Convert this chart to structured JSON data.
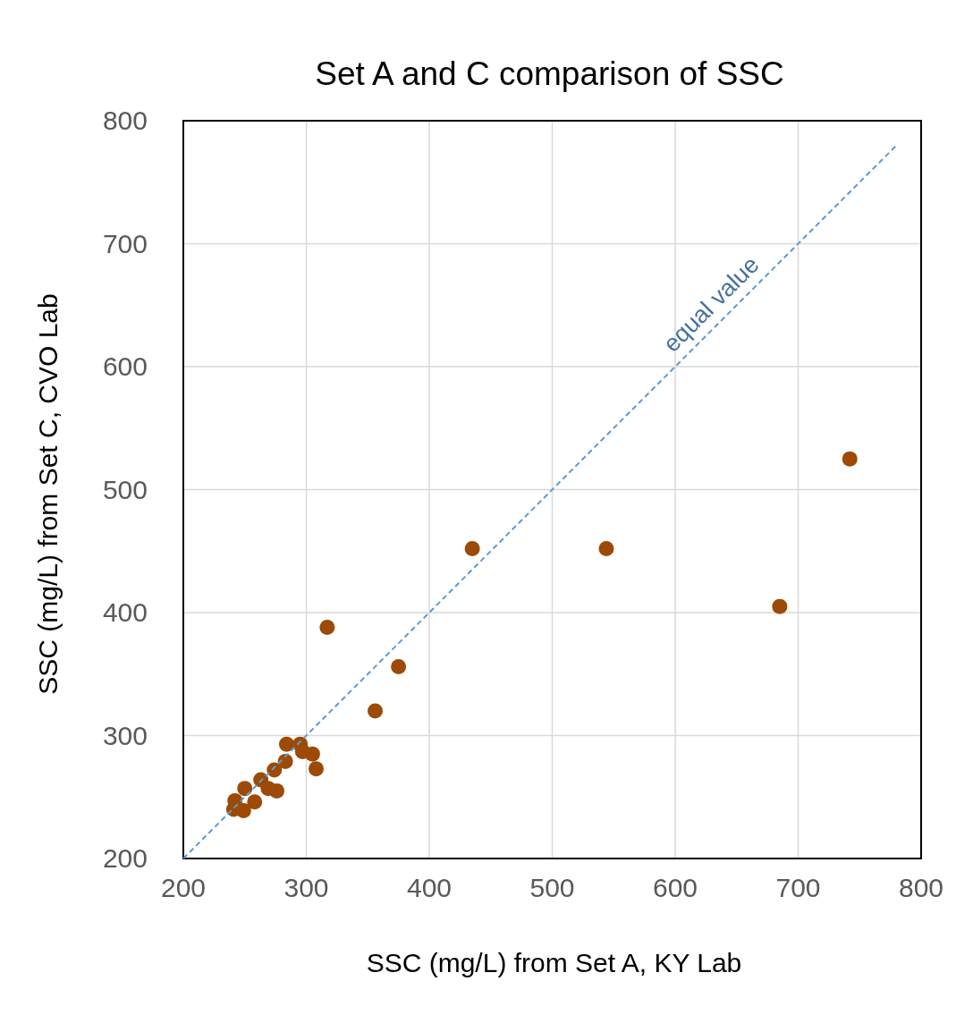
{
  "chart_data": {
    "type": "scatter",
    "title": "Set A and C comparison of SSC",
    "xlabel": "SSC (mg/L) from Set A, KY Lab",
    "ylabel": "SSC (mg/L) from Set C, CVO Lab",
    "xlim": [
      200,
      800
    ],
    "ylim": [
      200,
      800
    ],
    "xticks": [
      200,
      300,
      400,
      500,
      600,
      700,
      800
    ],
    "yticks": [
      200,
      300,
      400,
      500,
      600,
      700,
      800
    ],
    "grid": true,
    "marker": "circle",
    "series": [
      {
        "color": "#9c4a06",
        "x": [
          284,
          295,
          305,
          297,
          308,
          283,
          274,
          263,
          276,
          269,
          250,
          258,
          242,
          241,
          249,
          317,
          375,
          356,
          435,
          544,
          685,
          742
        ],
        "values": [
          293,
          293,
          285,
          287,
          273,
          279,
          272,
          264,
          255,
          257,
          257,
          246,
          247,
          240,
          239,
          388,
          356,
          320,
          452,
          452,
          405,
          525
        ]
      },
      {
        "type": "line",
        "color": "#5b9bd5",
        "line_style": "dashed",
        "marker": "none",
        "x": [
          200,
          780
        ],
        "values": [
          200,
          780
        ]
      }
    ],
    "annotations": [
      {
        "text": "equal value",
        "x": 640,
        "y": 640
      }
    ]
  }
}
